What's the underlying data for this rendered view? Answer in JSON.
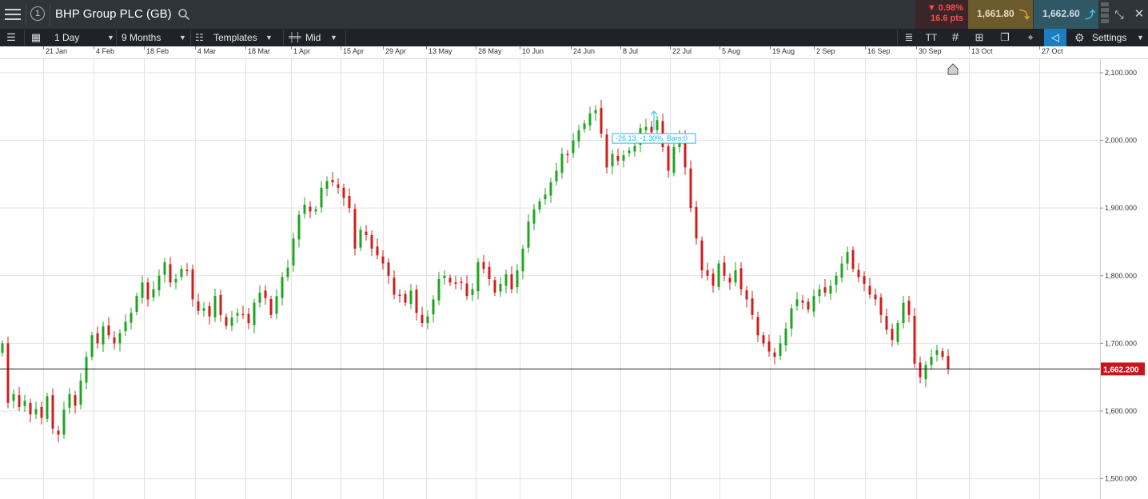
{
  "header": {
    "instrument": "BHP Group PLC (GB)",
    "change_pct": "0.98%",
    "change_pts": "16.6 pts",
    "sell_price": "1,661.80",
    "buy_price": "1,662.60",
    "info_badge": "1"
  },
  "toolbar": {
    "interval": "1 Day",
    "range": "9 Months",
    "templates": "Templates",
    "price_type": "Mid",
    "settings": "Settings",
    "text_tool_glyph": "TT"
  },
  "colors": {
    "up": "#1fa51f",
    "down": "#d01d1d",
    "grid": "#e2e2e2",
    "measure": "#26b7e0",
    "sell_bg": "#6b5a2c",
    "buy_bg": "#2f5764",
    "current_bg": "#c8161d"
  },
  "chart_data": {
    "type": "candlestick",
    "x_labels": [
      "21 Jan",
      "4 Feb",
      "18 Feb",
      "4 Mar",
      "18 Mar",
      "1 Apr",
      "15 Apr",
      "29 Apr",
      "13 May",
      "28 May",
      "10 Jun",
      "24 Jun",
      "8 Jul",
      "22 Jul",
      "5 Aug",
      "19 Aug",
      "2 Sep",
      "16 Sep",
      "30 Sep",
      "13 Oct",
      "27 Oct"
    ],
    "y_ticks": [
      1500,
      1600,
      1700,
      1800,
      1900,
      2000,
      2100
    ],
    "y_tick_labels": [
      "1,500.000",
      "1,600.000",
      "1,700.000",
      "1,800.000",
      "1,900.000",
      "2,000.000",
      "2,100.000"
    ],
    "ylim": [
      1470,
      2120
    ],
    "current_price": 1662.2,
    "current_price_label": "1,662.200",
    "measure_label": "-26.13, -1.30%, Bars:0",
    "series": [
      1700,
      1612,
      1625,
      1606,
      1615,
      1595,
      1603,
      1590,
      1622,
      1574,
      1565,
      1602,
      1625,
      1608,
      1645,
      1680,
      1712,
      1700,
      1725,
      1712,
      1700,
      1715,
      1732,
      1745,
      1770,
      1790,
      1765,
      1780,
      1800,
      1820,
      1790,
      1795,
      1810,
      1808,
      1765,
      1748,
      1752,
      1740,
      1770,
      1742,
      1726,
      1738,
      1745,
      1742,
      1730,
      1760,
      1775,
      1767,
      1742,
      1770,
      1798,
      1812,
      1855,
      1890,
      1905,
      1895,
      1898,
      1930,
      1940,
      1938,
      1930,
      1915,
      1900,
      1840,
      1868,
      1860,
      1840,
      1830,
      1818,
      1800,
      1772,
      1770,
      1760,
      1778,
      1745,
      1730,
      1740,
      1765,
      1795,
      1800,
      1790,
      1788,
      1790,
      1770,
      1780,
      1820,
      1810,
      1795,
      1775,
      1788,
      1802,
      1780,
      1808,
      1840,
      1880,
      1898,
      1910,
      1920,
      1938,
      1955,
      1980,
      1978,
      2000,
      2015,
      2025,
      2040,
      2045,
      2010,
      1960,
      1980,
      1970,
      1978,
      1985,
      1992,
      2018,
      2020,
      2012,
      2030,
      1990,
      1955,
      1990,
      2005,
      1960,
      1900,
      1855,
      1808,
      1800,
      1785,
      1818,
      1800,
      1790,
      1808,
      1780,
      1765,
      1742,
      1712,
      1700,
      1688,
      1680,
      1700,
      1722,
      1752,
      1765,
      1760,
      1750,
      1770,
      1780,
      1775,
      1785,
      1800,
      1818,
      1835,
      1810,
      1798,
      1788,
      1772,
      1765,
      1742,
      1720,
      1705,
      1730,
      1760,
      1742,
      1670,
      1650,
      1668,
      1680,
      1690,
      1680,
      1662
    ]
  }
}
